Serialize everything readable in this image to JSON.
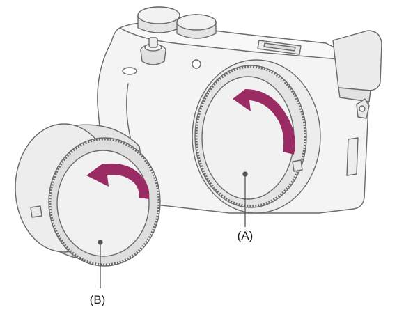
{
  "callouts": {
    "body_cap": "(A)",
    "rear_cap": "(B)"
  },
  "icons": {
    "body_arrow": "rotate-counterclockwise-arrow-icon",
    "rear_arrow": "rotate-counterclockwise-arrow-icon"
  },
  "colors": {
    "arrow": "#9b2c63",
    "line": "#6a6a6a",
    "fill_light": "#f3f3f3",
    "fill_mid": "#e6e6e6",
    "fill_dark": "#d6d6d6"
  }
}
